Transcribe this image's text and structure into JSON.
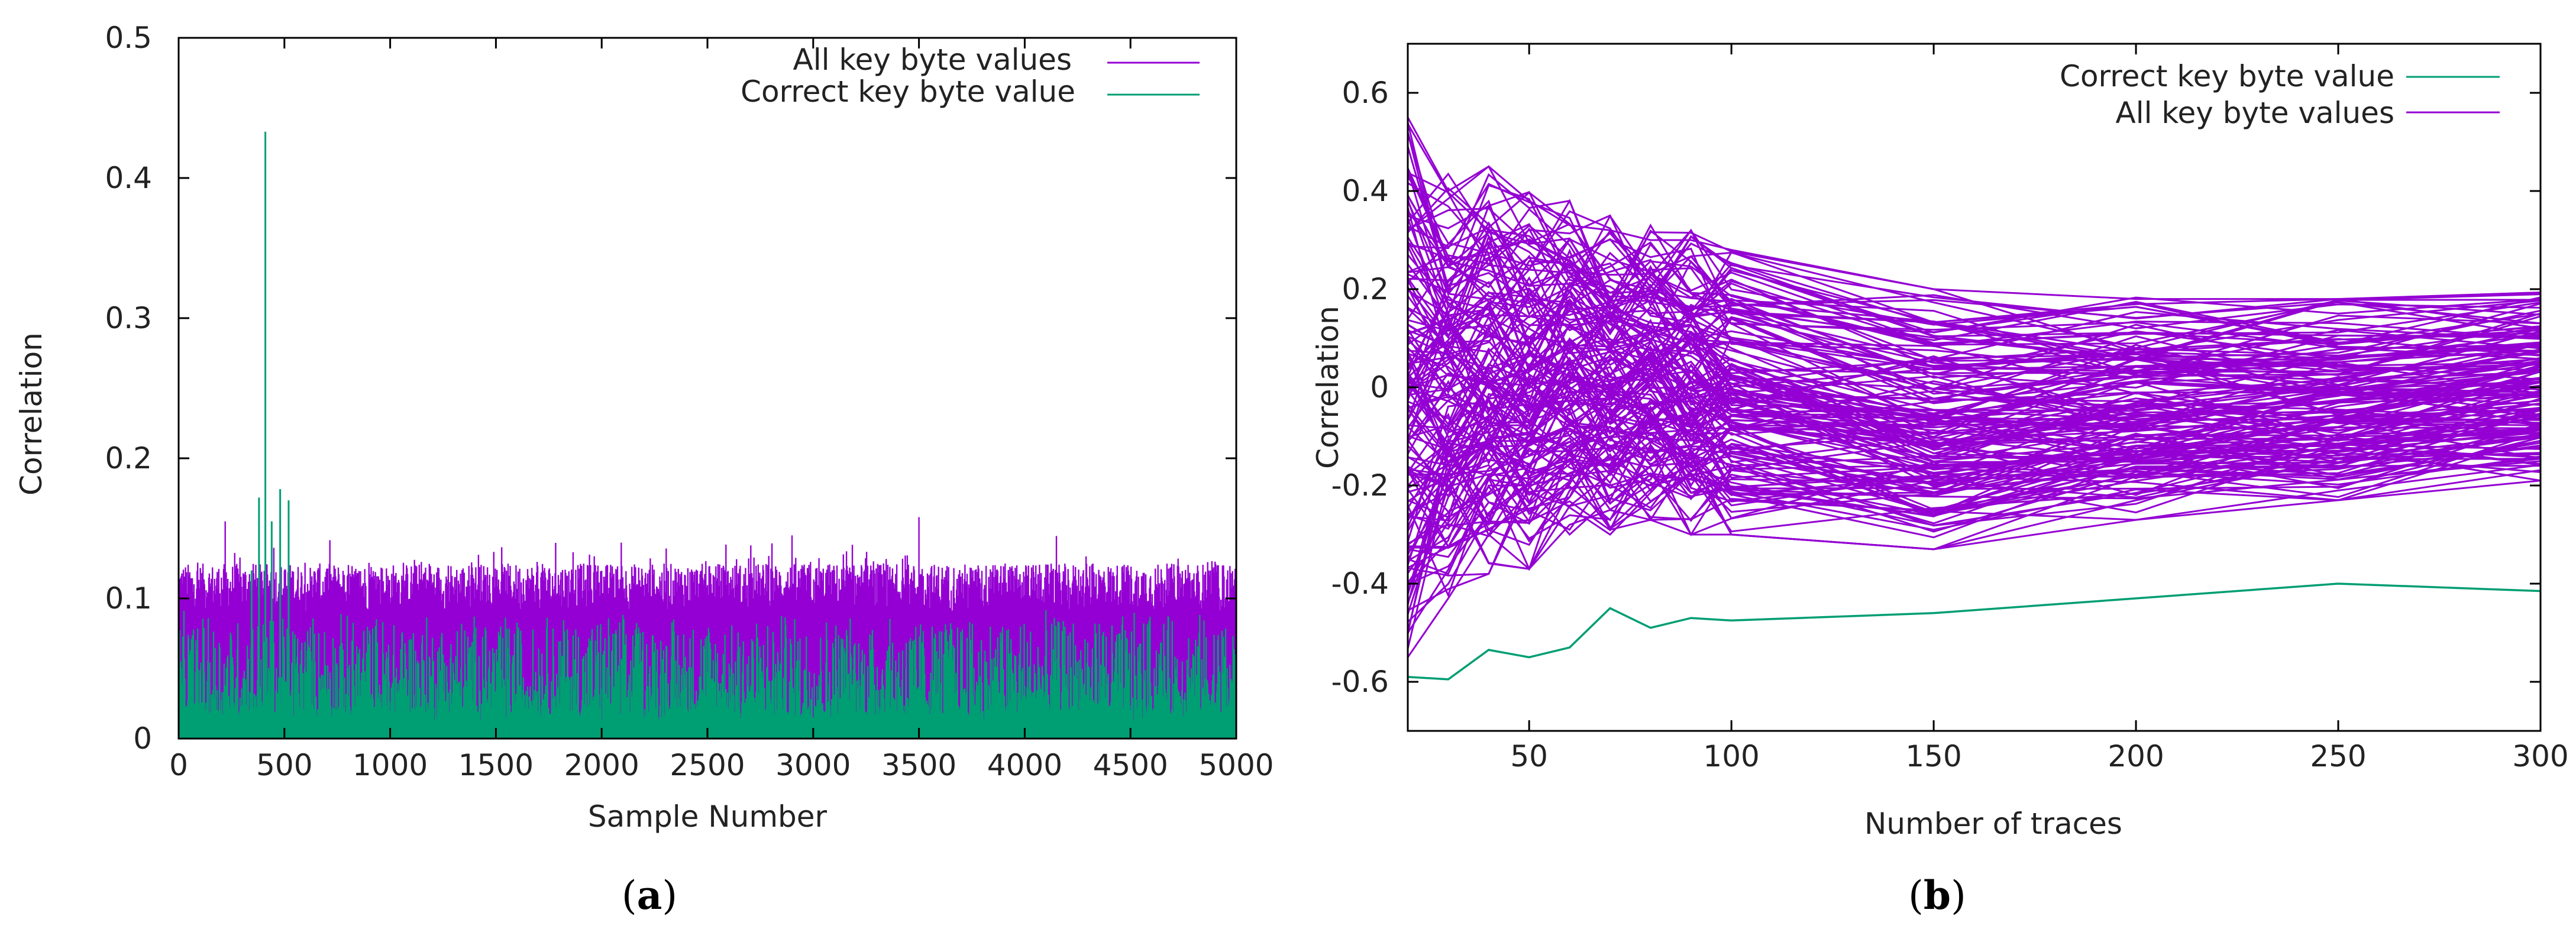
{
  "colors": {
    "all": "#9400D3",
    "correct": "#009E73",
    "axis": "#000000"
  },
  "chart_data": [
    {
      "type": "line",
      "caption_letter": "a",
      "caption_open": "(",
      "caption_close": ")",
      "xlabel": "Sample Number",
      "ylabel": "Correlation",
      "xlim": [
        0,
        5000
      ],
      "ylim": [
        0,
        0.5
      ],
      "xticks": [
        0,
        500,
        1000,
        1500,
        2000,
        2500,
        3000,
        3500,
        4000,
        4500,
        5000
      ],
      "xtick_labels": [
        "0",
        "500",
        "1000",
        "1500",
        "2000",
        "2500",
        "3000",
        "3500",
        "4000",
        "4500",
        "5000"
      ],
      "yticks": [
        0,
        0.1,
        0.2,
        0.3,
        0.4,
        0.5
      ],
      "ytick_labels": [
        "0",
        "0.1",
        "0.2",
        "0.3",
        "0.4",
        "0.5"
      ],
      "legend": {
        "position": "top-right",
        "entries": [
          "All key byte values",
          "Correct key byte value"
        ]
      },
      "series": [
        {
          "name": "All key byte values",
          "typical_max": 0.11,
          "envelope_range": [
            0.09,
            0.145
          ],
          "notable_peaks": [
            {
              "x": 3500,
              "y": 0.158
            },
            {
              "x": 220,
              "y": 0.155
            },
            {
              "x": 2900,
              "y": 0.145
            }
          ]
        },
        {
          "name": "Correct key byte value",
          "typical_range": [
            0.01,
            0.08
          ],
          "peaks": [
            {
              "x": 410,
              "y": 0.433
            },
            {
              "x": 380,
              "y": 0.172
            },
            {
              "x": 480,
              "y": 0.178
            },
            {
              "x": 520,
              "y": 0.17
            },
            {
              "x": 440,
              "y": 0.155
            },
            {
              "x": 345,
              "y": 0.12
            }
          ]
        }
      ]
    },
    {
      "type": "line",
      "caption_letter": "b",
      "caption_open": "(",
      "caption_close": ")",
      "xlabel": "Number of traces",
      "ylabel": "Correlation",
      "xlim": [
        20,
        300
      ],
      "ylim": [
        -0.7,
        0.7
      ],
      "xticks": [
        50,
        100,
        150,
        200,
        250,
        300
      ],
      "xtick_labels": [
        "50",
        "100",
        "150",
        "200",
        "250",
        "300"
      ],
      "yticks": [
        -0.6,
        -0.4,
        -0.2,
        0,
        0.2,
        0.4,
        0.6
      ],
      "ytick_labels": [
        "-0.6",
        "-0.4",
        "-0.2",
        "0",
        "0.2",
        "0.4",
        "0.6"
      ],
      "legend": {
        "position": "top-right",
        "entries": [
          "Correct key byte value",
          "All key byte values"
        ]
      },
      "x": [
        20,
        30,
        40,
        50,
        60,
        70,
        80,
        90,
        100,
        150,
        200,
        250,
        300
      ],
      "series": [
        {
          "name": "Correct key byte value",
          "values": [
            -0.59,
            -0.595,
            -0.535,
            -0.55,
            -0.53,
            -0.45,
            -0.49,
            -0.47,
            -0.475,
            -0.46,
            -0.43,
            -0.4,
            -0.415
          ]
        },
        {
          "name": "All key byte values",
          "count": 255,
          "envelope": {
            "upper": [
              0.55,
              0.45,
              0.45,
              0.4,
              0.38,
              0.35,
              0.33,
              0.32,
              0.3,
              0.2,
              0.19,
              0.18,
              0.195
            ],
            "lower": [
              -0.55,
              -0.43,
              -0.38,
              -0.37,
              -0.3,
              -0.3,
              -0.27,
              -0.3,
              -0.3,
              -0.33,
              -0.27,
              -0.23,
              -0.19
            ]
          },
          "highlighted_lines": [
            {
              "values": [
                0.55,
                0.4,
                0.45,
                0.38,
                0.33,
                0.32,
                0.3,
                0.3,
                0.28,
                0.2,
                0.18,
                0.18,
                0.19
              ]
            },
            {
              "values": [
                -0.55,
                -0.43,
                -0.3,
                -0.37,
                -0.28,
                -0.25,
                -0.27,
                -0.3,
                -0.3,
                -0.33,
                -0.27,
                -0.23,
                -0.19
              ]
            },
            {
              "values": [
                -0.35,
                -0.38,
                -0.2,
                -0.2,
                -0.18,
                -0.17,
                -0.2,
                -0.18,
                -0.16,
                -0.14,
                -0.15,
                -0.16,
                -0.16
              ]
            }
          ]
        }
      ]
    }
  ]
}
